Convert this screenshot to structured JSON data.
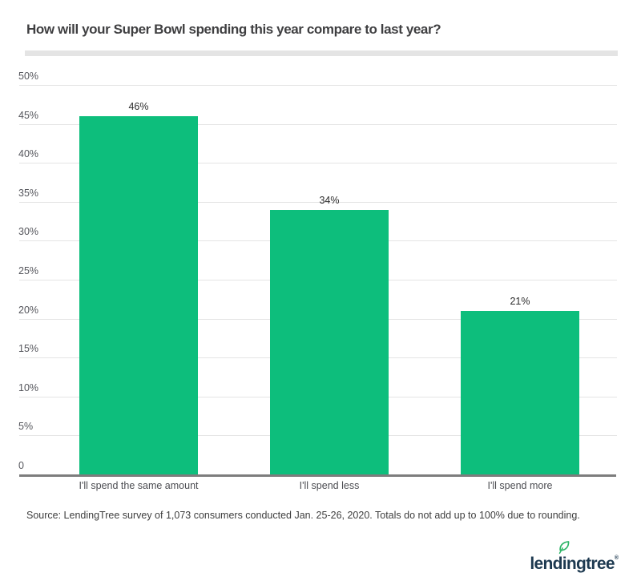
{
  "title": "How will your Super Bowl spending this year compare to last year?",
  "source_note": "Source: LendingTree survey of 1,073 consumers conducted Jan. 25-26, 2020. Totals do not add up to 100% due to rounding.",
  "logo": {
    "brand": "lendingtree",
    "trademark": "®",
    "leaf_icon": "leaf-icon"
  },
  "colors": {
    "bar": "#0dbe7c",
    "gridline": "#e4e4e4",
    "axis_line": "#7d7d7d",
    "divider": "#e4e4e4",
    "title_text": "#3f3f41",
    "tick_text": "#55565c",
    "value_text": "#2d2d2d",
    "category_text": "#4c4d52",
    "source_text": "#3e3e3e",
    "logo_navy": "#1d3950",
    "leaf_green": "#2db567",
    "background": "#ffffff"
  },
  "chart_data": {
    "type": "bar",
    "title": "How will your Super Bowl spending this year compare to last year?",
    "categories": [
      "I'll spend the same amount",
      "I'll spend less",
      "I'll spend more"
    ],
    "values": [
      46,
      34,
      21
    ],
    "value_labels": [
      "46%",
      "34%",
      "21%"
    ],
    "xlabel": "",
    "ylabel": "",
    "ylim": [
      0,
      50
    ],
    "ytick_step": 5,
    "ytick_labels": [
      "50%",
      "45%",
      "40%",
      "35%",
      "30%",
      "25%",
      "20%",
      "15%",
      "10%",
      "5%",
      "0"
    ],
    "grid": true,
    "legend": false
  }
}
